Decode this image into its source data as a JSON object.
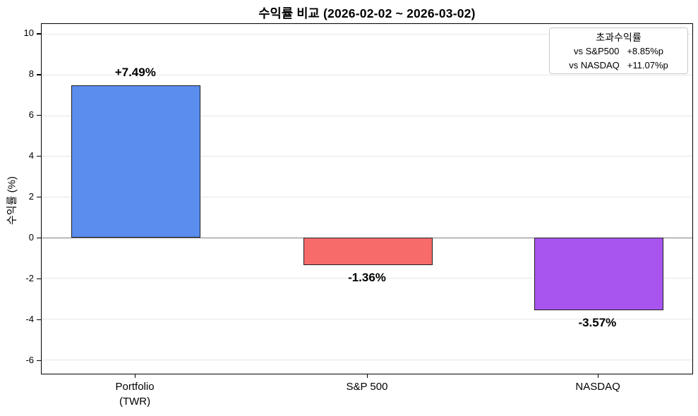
{
  "chart_data": {
    "type": "bar",
    "title": "수익률 비교 (2026-02-02 ~ 2026-03-02)",
    "ylabel": "수익률 (%)",
    "xlabel": "",
    "categories": [
      "Portfolio\n(TWR)",
      "S&P 500",
      "NASDAQ"
    ],
    "values": [
      7.49,
      -1.36,
      -3.57
    ],
    "bar_labels": [
      "+7.49%",
      "-1.36%",
      "-3.57%"
    ],
    "bar_colors": [
      "#5a8dee",
      "#f76b6b",
      "#a855f0"
    ],
    "bar_edge_color": "#1f1f1f",
    "ylim": [
      -6.7,
      10.5
    ],
    "yticks": [
      10,
      8,
      6,
      4,
      2,
      0,
      -2,
      -4,
      -6
    ],
    "grid": "horizontal",
    "grid_color": "#e6e6e6",
    "zero_line_color": "#808080",
    "legend": {
      "position": "top-right",
      "title": "초과수익률",
      "rows": [
        {
          "label": "vs S&P500",
          "value": "+8.85%p"
        },
        {
          "label": "vs NASDAQ",
          "value": "+11.07%p"
        }
      ]
    }
  }
}
